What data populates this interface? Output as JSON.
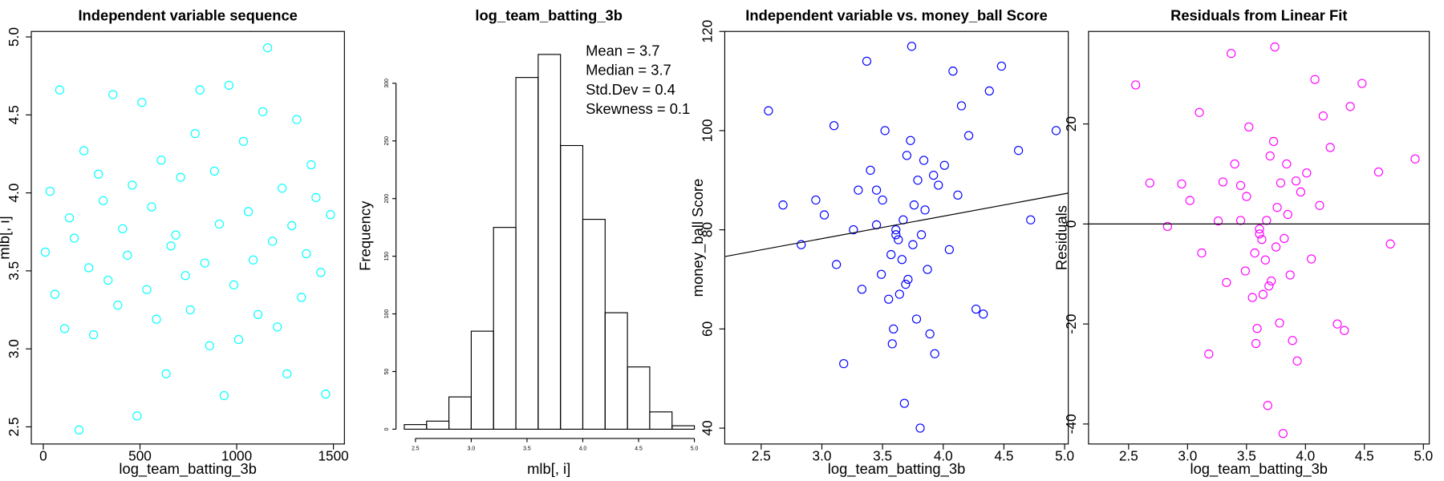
{
  "chart_data": [
    {
      "type": "scatter",
      "title": "Independent variable sequence",
      "x_label": "log_team_batting_3b",
      "y_label": "mlb[, i]",
      "color": "#00ffff",
      "x": [
        10,
        35,
        60,
        85,
        110,
        135,
        160,
        185,
        210,
        235,
        260,
        285,
        310,
        335,
        360,
        385,
        410,
        435,
        460,
        485,
        510,
        535,
        560,
        585,
        610,
        635,
        660,
        685,
        710,
        735,
        760,
        785,
        810,
        835,
        860,
        885,
        910,
        935,
        960,
        985,
        1010,
        1035,
        1060,
        1085,
        1110,
        1135,
        1160,
        1185,
        1210,
        1235,
        1260,
        1285,
        1310,
        1335,
        1360,
        1385,
        1410,
        1435,
        1460,
        1485
      ],
      "values": [
        3.62,
        4.01,
        3.35,
        4.66,
        3.13,
        3.84,
        3.71,
        2.48,
        4.27,
        3.52,
        3.09,
        4.12,
        3.95,
        3.44,
        4.63,
        3.28,
        3.77,
        3.6,
        4.05,
        2.57,
        4.58,
        3.38,
        3.91,
        3.19,
        4.21,
        2.84,
        3.66,
        3.73,
        4.1,
        3.47,
        3.25,
        4.38,
        4.66,
        3.55,
        3.02,
        4.14,
        3.8,
        2.7,
        4.69,
        3.41,
        3.06,
        4.33,
        3.88,
        3.57,
        3.22,
        4.52,
        4.93,
        3.69,
        3.14,
        4.03,
        2.84,
        3.79,
        4.47,
        3.33,
        3.61,
        4.18,
        3.97,
        3.49,
        2.71,
        3.86
      ],
      "xlim": [
        -62,
        1557
      ],
      "ylim": [
        2.39,
        5.035
      ],
      "xticks": [
        0,
        500,
        1000,
        1500
      ],
      "yticks": [
        2.5,
        {
          "value": 3.0,
          "label": "3.0"
        },
        3.5,
        {
          "value": 4.0,
          "label": "4.0"
        },
        4.5,
        {
          "value": 5.0,
          "label": "5.0"
        }
      ]
    },
    {
      "type": "histogram",
      "title": "log_team_batting_3b",
      "x_label": "mlb[, i]",
      "y_label": "Frequency",
      "bins": [
        2.4,
        2.6,
        2.8,
        3.0,
        3.2,
        3.4,
        3.6,
        3.8,
        4.0,
        4.2,
        4.4,
        4.6,
        4.8,
        5.0
      ],
      "values": [
        4,
        7,
        28,
        85,
        175,
        305,
        325,
        246,
        182,
        101,
        54,
        15,
        3
      ],
      "xlim": [
        2.4,
        5.0
      ],
      "ylim": [
        0,
        300
      ],
      "xticks": [
        2.5,
        {
          "value": 3.0,
          "label": "3.0"
        },
        3.5,
        {
          "value": 4.0,
          "label": "4.0"
        },
        4.5,
        {
          "value": 5.0,
          "label": "5.0"
        }
      ],
      "yticks": [
        0,
        50,
        100,
        150,
        200,
        250,
        300
      ],
      "annotations": [
        "Mean = 3.7",
        "Median = 3.7",
        "Std.Dev = 0.4",
        "Skewness = 0.1"
      ]
    },
    {
      "type": "scatter",
      "title": "Independent variable vs. money_ball Score",
      "x_label": "log_team_batting_3b",
      "y_label": "money_ball Score",
      "color": "#0000ff",
      "x": [
        2.56,
        3.12,
        3.45,
        3.61,
        3.7,
        3.78,
        3.85,
        3.33,
        3.92,
        4.05,
        4.21,
        3.58,
        3.67,
        2.95,
        3.49,
        4.38,
        3.74,
        3.81,
        3.26,
        4.62,
        3.55,
        3.66,
        4.12,
        3.4,
        3.89,
        3.02,
        3.71,
        4.48,
        3.63,
        3.96,
        3.18,
        3.52,
        4.27,
        3.76,
        2.83,
        3.68,
        4.01,
        3.45,
        3.87,
        4.93,
        3.59,
        3.73,
        3.3,
        4.15,
        3.64,
        3.82,
        3.37,
        4.72,
        3.57,
        3.79,
        3.1,
        3.93,
        3.5,
        4.08,
        3.69,
        2.68,
        3.84,
        4.33,
        3.61,
        3.75
      ],
      "values": [
        104,
        73,
        88,
        79,
        95,
        62,
        84,
        68,
        91,
        76,
        99,
        57,
        82,
        86,
        71,
        108,
        117,
        40,
        80,
        96,
        66,
        74,
        87,
        92,
        59,
        83,
        70,
        113,
        78,
        89,
        53,
        100,
        64,
        85,
        77,
        45,
        93,
        81,
        72,
        100,
        60,
        98,
        88,
        105,
        67,
        79,
        114,
        82,
        75,
        90,
        101,
        55,
        86,
        112,
        69,
        85,
        94,
        63,
        80,
        77
      ],
      "fit_line": {
        "x": [
          2.2,
          5.03
        ],
        "y": [
          74.6,
          87.4
        ]
      },
      "xlim": [
        2.2,
        5.03
      ],
      "ylim": [
        36.8,
        120
      ],
      "xticks": [
        2.5,
        {
          "value": 3.0,
          "label": "3.0"
        },
        3.5,
        {
          "value": 4.0,
          "label": "4.0"
        },
        4.5,
        {
          "value": 5.0,
          "label": "5.0"
        }
      ],
      "yticks": [
        40,
        60,
        80,
        100,
        120
      ]
    },
    {
      "type": "scatter",
      "title": "Residuals from Linear Fit",
      "x_label": "log_team_batting_3b",
      "y_label": "Residuals",
      "color": "#ff00ff",
      "x": [
        2.56,
        3.12,
        3.45,
        3.61,
        3.7,
        3.78,
        3.85,
        3.33,
        3.92,
        4.05,
        4.21,
        3.58,
        3.67,
        2.95,
        3.49,
        4.38,
        3.74,
        3.81,
        3.26,
        4.62,
        3.55,
        3.66,
        4.12,
        3.4,
        3.89,
        3.02,
        3.71,
        4.48,
        3.63,
        3.96,
        3.18,
        3.52,
        4.27,
        3.76,
        2.83,
        3.68,
        4.01,
        3.45,
        3.87,
        4.93,
        3.59,
        3.73,
        3.3,
        4.15,
        3.64,
        3.82,
        3.37,
        4.72,
        3.57,
        3.79,
        3.1,
        3.93,
        3.5,
        4.08,
        3.69,
        2.68,
        3.84,
        4.33,
        3.61,
        3.75
      ],
      "values": [
        27.8,
        -5.8,
        7.7,
        -2.0,
        13.6,
        -19.8,
        1.9,
        -11.7,
        8.6,
        -7.0,
        15.3,
        -23.9,
        0.7,
        8.0,
        -9.4,
        23.5,
        35.4,
        -41.9,
        0.6,
        10.4,
        -14.7,
        -7.2,
        3.7,
        12.0,
        -23.3,
        4.7,
        -11.4,
        28.1,
        -3.1,
        6.4,
        -26.0,
        19.4,
        -20.0,
        3.3,
        -0.5,
        -36.3,
        10.2,
        0.7,
        -10.2,
        13.0,
        -20.9,
        16.5,
        8.4,
        21.6,
        -14.1,
        -2.9,
        34.1,
        -4.0,
        -5.8,
        8.2,
        22.3,
        -27.4,
        5.5,
        28.9,
        -12.4,
        8.2,
        12.0,
        -21.3,
        -1.0,
        -4.6
      ],
      "hline": 0,
      "xlim": [
        2.16,
        5.05
      ],
      "ylim": [
        -44,
        38.5
      ],
      "xticks": [
        2.5,
        {
          "value": 3.0,
          "label": "3.0"
        },
        3.5,
        {
          "value": 4.0,
          "label": "4.0"
        },
        4.5,
        {
          "value": 5.0,
          "label": "5.0"
        }
      ],
      "yticks": [
        -40,
        -20,
        0,
        20
      ]
    }
  ]
}
